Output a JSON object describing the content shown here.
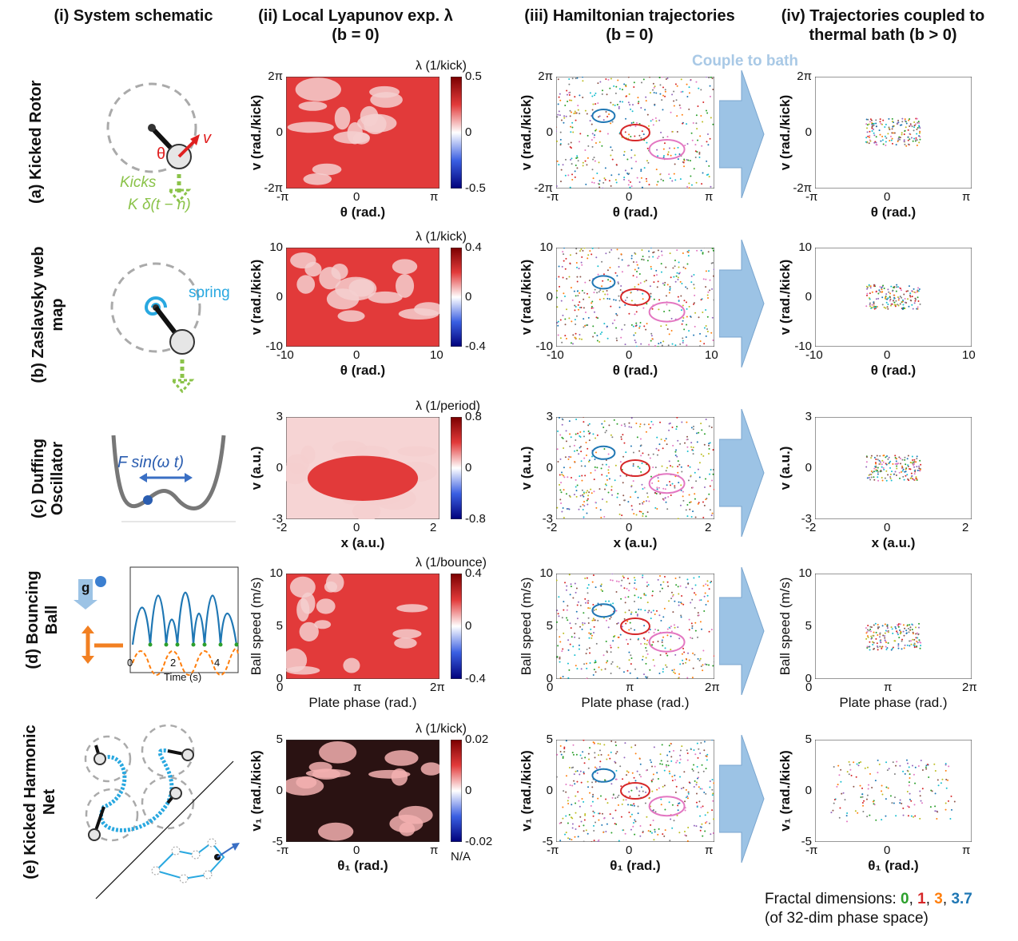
{
  "columns": {
    "c1": "(i) System schematic",
    "c2a": "(ii) Local Lyapunov exp. λ",
    "c2b": "(b = 0)",
    "c3a": "(iii) Hamiltonian trajectories",
    "c3b": "(b = 0)",
    "c4a": "(iv) Trajectories coupled to",
    "c4b": "thermal bath (b > 0)"
  },
  "couple_label": "Couple to bath",
  "rows": [
    {
      "label": "(a) Kicked Rotor",
      "xlabel": "θ (rad.)",
      "ylabel": "v (rad./kick)",
      "xticks": [
        "-π",
        "0",
        "π"
      ],
      "yticks": [
        "2π",
        "0",
        "-2π"
      ],
      "cbar_title": "λ (1/kick)",
      "cbar_ticks": [
        "0.5",
        "0",
        "-0.5"
      ]
    },
    {
      "label1": "(b) Zaslavsky web",
      "label2": "map",
      "xlabel": "θ (rad.)",
      "ylabel": "v (rad./kick)",
      "xticks": [
        "-10",
        "0",
        "10"
      ],
      "yticks": [
        "10",
        "0",
        "-10"
      ],
      "cbar_title": "λ (1/kick)",
      "cbar_ticks": [
        "0.4",
        "0",
        "-0.4"
      ]
    },
    {
      "label1": "(c) Duffing",
      "label2": "Oscillator",
      "xlabel": "x (a.u.)",
      "ylabel": "v (a.u.)",
      "xticks": [
        "-2",
        "0",
        "2"
      ],
      "yticks": [
        "3",
        "0",
        "-3"
      ],
      "cbar_title": "λ (1/period)",
      "cbar_ticks": [
        "0.8",
        "0",
        "-0.8"
      ]
    },
    {
      "label1": "(d) Bouncing",
      "label2": "Ball",
      "xlabel": "Plate phase (rad.)",
      "ylabel": "Ball speed (m/s)",
      "xticks": [
        "0",
        "π",
        "2π"
      ],
      "yticks": [
        "10",
        "5",
        "0"
      ],
      "cbar_title": "λ (1/bounce)",
      "cbar_ticks": [
        "0.4",
        "0",
        "-0.4"
      ]
    },
    {
      "label1": "(e) Kicked  Harmonic",
      "label2": "Net",
      "xlabel": "θ₁ (rad.)",
      "ylabel": "v₁ (rad./kick)",
      "xticks": [
        "-π",
        "0",
        "π"
      ],
      "yticks": [
        "5",
        "0",
        "-5"
      ],
      "cbar_title": "λ (1/kick)",
      "cbar_ticks": [
        "0.02",
        "0",
        "-0.02"
      ],
      "cbar_na": "N/A"
    }
  ],
  "schematic": {
    "theta": "θ",
    "v": "v",
    "kicks": "Kicks",
    "kick_formula": "K δ(t − n)",
    "spring": "spring",
    "force": "F sin(ω t)",
    "g": "g",
    "time_label": "Time (s)",
    "time_ticks": [
      "0",
      "2",
      "4"
    ]
  },
  "fractal": {
    "prefix": "Fractal dimensions: ",
    "d0": "0",
    "d1": "1",
    "d3": "3",
    "d37": "3.7",
    "note": "(of 32-dim phase space)"
  },
  "colors": {
    "arrow": "#9cc3e5",
    "green": "#2ca02c",
    "red": "#d62728",
    "orange": "#ff7f0e",
    "blue": "#1f77b4"
  }
}
